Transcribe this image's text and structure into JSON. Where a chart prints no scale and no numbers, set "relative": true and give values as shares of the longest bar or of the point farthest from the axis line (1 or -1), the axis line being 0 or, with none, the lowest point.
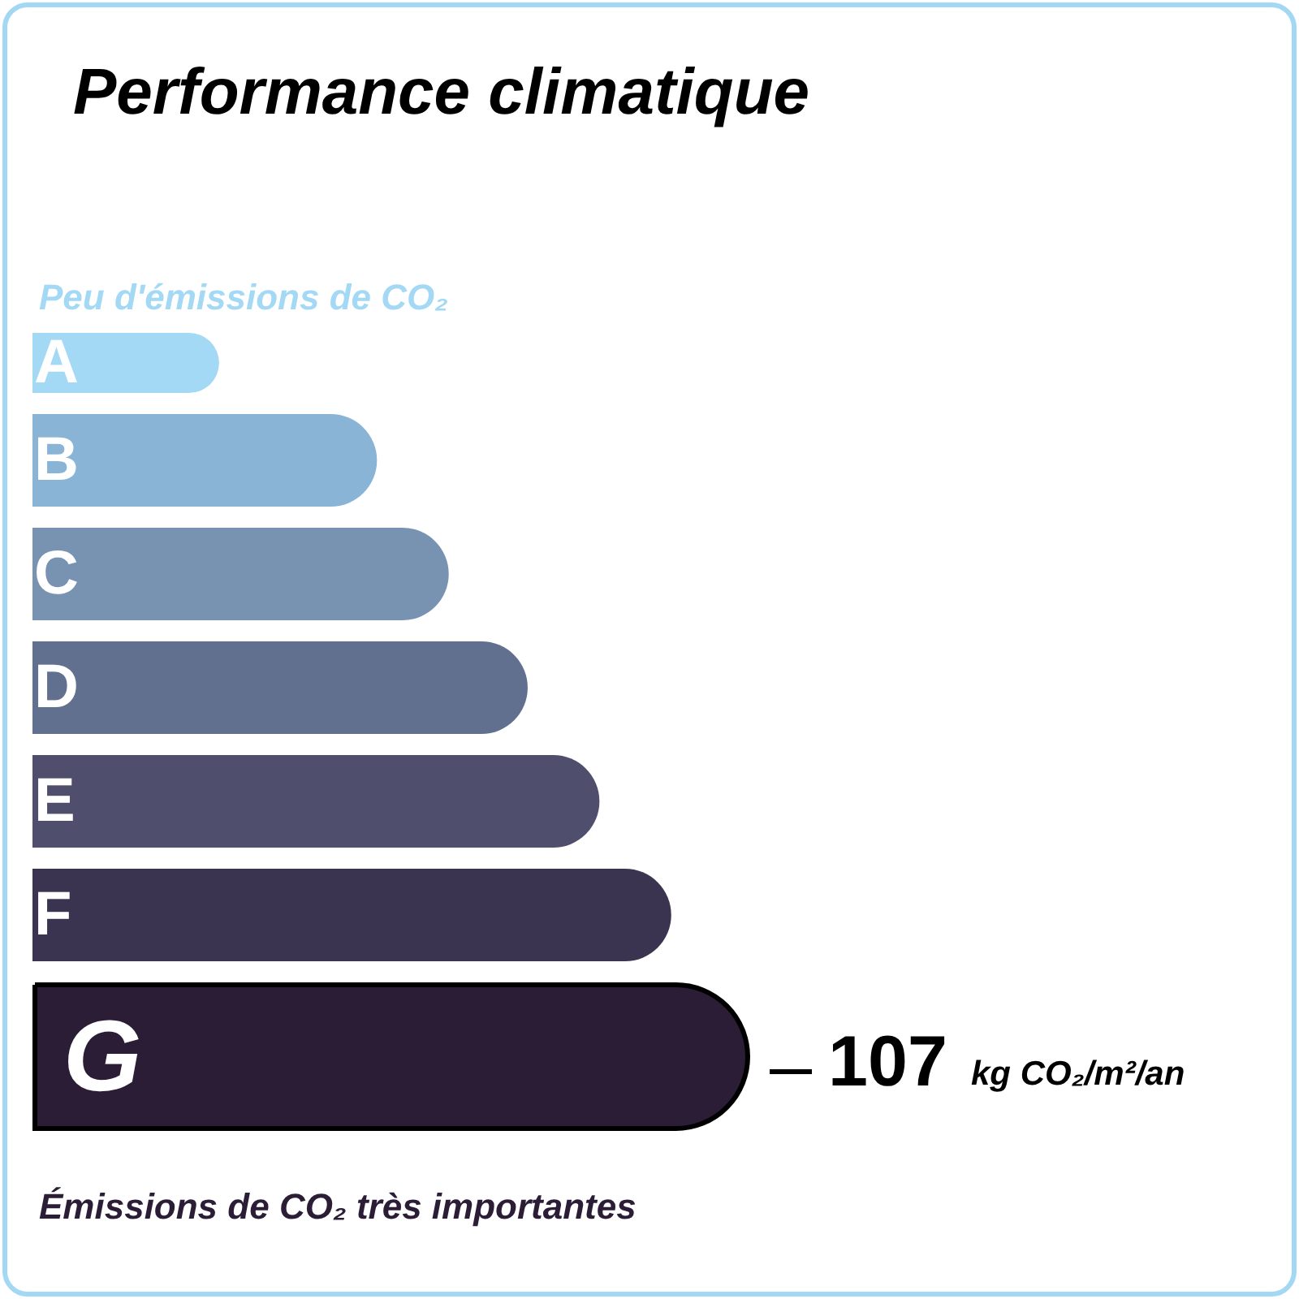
{
  "chart_data": {
    "type": "bar",
    "orientation": "horizontal",
    "relative": true,
    "title": "Performance climatique",
    "categories": [
      "A",
      "B",
      "C",
      "D",
      "E",
      "F",
      "G"
    ],
    "values": [
      0.26,
      0.48,
      0.58,
      0.69,
      0.79,
      0.89,
      1
    ],
    "colors": [
      "#a3d9f5",
      "#8ab4d6",
      "#7893b2",
      "#62708f",
      "#4f4e6d",
      "#3b3450",
      "#2b1d36"
    ],
    "annotations": [
      "Peu d'émissions de CO₂",
      "107 kg CO₂/m²/an",
      "Émissions de CO₂ très importantes"
    ]
  }
}
